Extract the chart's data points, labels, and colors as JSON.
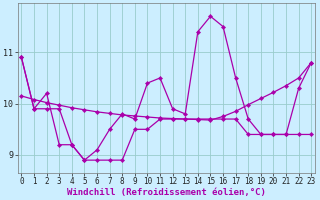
{
  "xlabel": "Windchill (Refroidissement éolien,°C)",
  "bg_color": "#cceeff",
  "line_color": "#aa00aa",
  "grid_color": "#99cccc",
  "x": [
    0,
    1,
    2,
    3,
    4,
    5,
    6,
    7,
    8,
    9,
    10,
    11,
    12,
    13,
    14,
    15,
    16,
    17,
    18,
    19,
    20,
    21,
    22,
    23
  ],
  "y_main": [
    10.9,
    9.9,
    10.2,
    9.2,
    9.2,
    8.9,
    9.1,
    9.5,
    9.8,
    9.7,
    10.4,
    10.5,
    9.9,
    9.8,
    11.4,
    11.7,
    11.5,
    10.5,
    9.7,
    9.4,
    9.4,
    9.4,
    10.3,
    10.8
  ],
  "y_trend": [
    10.15,
    10.08,
    10.02,
    9.97,
    9.92,
    9.88,
    9.84,
    9.81,
    9.78,
    9.76,
    9.74,
    9.72,
    9.71,
    9.7,
    9.69,
    9.68,
    9.75,
    9.85,
    9.98,
    10.1,
    10.22,
    10.35,
    10.5,
    10.8
  ],
  "y_runmin": [
    10.9,
    9.9,
    9.9,
    9.9,
    9.2,
    8.9,
    8.9,
    8.9,
    8.9,
    9.5,
    9.5,
    9.7,
    9.7,
    9.7,
    9.7,
    9.7,
    9.7,
    9.7,
    9.4,
    9.4,
    9.4,
    9.4,
    9.4,
    9.4
  ],
  "ylim": [
    8.65,
    11.95
  ],
  "xlim": [
    -0.3,
    23.3
  ],
  "yticks": [
    9,
    10,
    11
  ],
  "xticks": [
    0,
    1,
    2,
    3,
    4,
    5,
    6,
    7,
    8,
    9,
    10,
    11,
    12,
    13,
    14,
    15,
    16,
    17,
    18,
    19,
    20,
    21,
    22,
    23
  ],
  "tick_fontsize": 5.5,
  "label_fontsize": 6.5
}
